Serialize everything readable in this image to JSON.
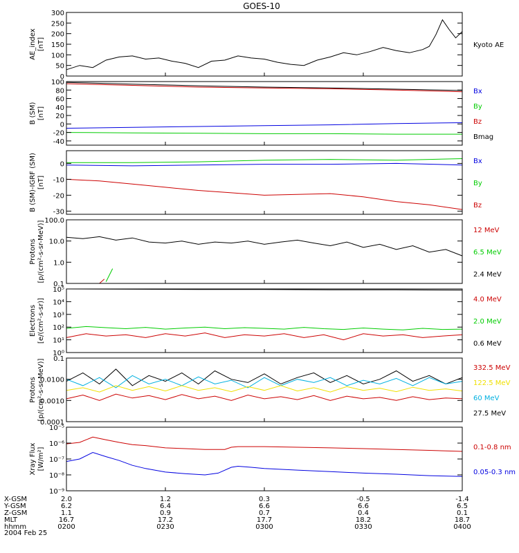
{
  "title": "GOES-10",
  "date_label": "2004 Feb 25",
  "colors": {
    "black": "#000000",
    "red": "#cc0000",
    "blue": "#0000e0",
    "green": "#00cc00",
    "cyan": "#00b0e0",
    "yellow": "#f0e000"
  },
  "footer": {
    "row_labels": [
      "X-GSM",
      "Y-GSM",
      "Z-GSM",
      "MLT",
      "hhmm"
    ],
    "columns": [
      {
        "values": [
          "2.0",
          "6.2",
          "1.1",
          "16.7",
          "0200"
        ]
      },
      {
        "values": [
          "1.2",
          "6.4",
          "0.9",
          "17.2",
          "0230"
        ]
      },
      {
        "values": [
          "0.3",
          "6.6",
          "0.7",
          "17.7",
          "0300"
        ]
      },
      {
        "values": [
          "-0.5",
          "6.6",
          "0.4",
          "18.2",
          "0330"
        ]
      },
      {
        "values": [
          "-1.4",
          "6.5",
          "0.1",
          "18.7",
          "0400"
        ]
      }
    ]
  },
  "chart_data": [
    {
      "type": "line",
      "ylabel": [
        "AE_index",
        "[nT]"
      ],
      "yscale": "linear",
      "ylim": [
        0,
        300
      ],
      "yticks": [
        0,
        50,
        100,
        150,
        200,
        250,
        300
      ],
      "ytick_labels": [
        "0",
        "50",
        "100",
        "150",
        "200",
        "250",
        "300"
      ],
      "xlim": [
        0,
        120
      ],
      "legend": [
        {
          "text": "Kyoto AE",
          "color": "#000000"
        }
      ],
      "series": [
        {
          "name": "Kyoto AE",
          "color": "#000000",
          "x": [
            0,
            4,
            8,
            12,
            16,
            20,
            24,
            28,
            32,
            36,
            40,
            44,
            48,
            52,
            56,
            60,
            64,
            68,
            72,
            76,
            80,
            84,
            88,
            92,
            96,
            100,
            104,
            108,
            110,
            112,
            114,
            116,
            118,
            120
          ],
          "y": [
            30,
            50,
            40,
            75,
            90,
            95,
            80,
            85,
            70,
            60,
            40,
            70,
            75,
            95,
            85,
            80,
            65,
            55,
            50,
            75,
            90,
            110,
            100,
            115,
            135,
            120,
            110,
            125,
            140,
            195,
            265,
            220,
            180,
            210
          ]
        }
      ]
    },
    {
      "type": "line",
      "ylabel": [
        "B (SM)",
        "[nT]"
      ],
      "yscale": "linear",
      "ylim": [
        -50,
        100
      ],
      "yticks": [
        -40,
        -20,
        0,
        20,
        40,
        60,
        80,
        100
      ],
      "ytick_labels": [
        "-40",
        "-20",
        "0",
        "20",
        "40",
        "60",
        "80",
        "100"
      ],
      "xlim": [
        0,
        120
      ],
      "legend": [
        {
          "text": "Bx",
          "color": "#0000e0"
        },
        {
          "text": "By",
          "color": "#00cc00"
        },
        {
          "text": "Bz",
          "color": "#cc0000"
        },
        {
          "text": "Bmag",
          "color": "#000000"
        }
      ],
      "series": [
        {
          "name": "Bmag",
          "color": "#000000",
          "x": [
            0,
            20,
            40,
            60,
            80,
            100,
            120
          ],
          "y": [
            98,
            94,
            90,
            87,
            85,
            82,
            79
          ]
        },
        {
          "name": "Bz",
          "color": "#cc0000",
          "x": [
            0,
            20,
            40,
            60,
            80,
            100,
            120
          ],
          "y": [
            95,
            91,
            87,
            85,
            83,
            80,
            76
          ]
        },
        {
          "name": "Bx",
          "color": "#0000e0",
          "x": [
            0,
            20,
            40,
            60,
            80,
            100,
            120
          ],
          "y": [
            -10,
            -8,
            -6,
            -4,
            -2,
            1,
            3
          ]
        },
        {
          "name": "By",
          "color": "#00cc00",
          "x": [
            0,
            20,
            40,
            60,
            80,
            100,
            120
          ],
          "y": [
            -20,
            -21,
            -22,
            -23,
            -23,
            -24,
            -24
          ]
        }
      ]
    },
    {
      "type": "line",
      "ylabel": [
        "B (SM)-IGRF (SM)",
        "[nT]"
      ],
      "yscale": "linear",
      "ylim": [
        -32,
        8
      ],
      "yticks": [
        -30,
        -20,
        -10,
        0
      ],
      "ytick_labels": [
        "-30",
        "-20",
        "-10",
        "0"
      ],
      "xlim": [
        0,
        120
      ],
      "legend": [
        {
          "text": "Bx",
          "color": "#0000e0"
        },
        {
          "text": "By",
          "color": "#00cc00"
        },
        {
          "text": "Bz",
          "color": "#cc0000"
        }
      ],
      "series": [
        {
          "name": "By",
          "color": "#00cc00",
          "x": [
            0,
            20,
            40,
            60,
            80,
            100,
            120
          ],
          "y": [
            0.5,
            0.5,
            1,
            2,
            2.5,
            2,
            3
          ]
        },
        {
          "name": "Bx",
          "color": "#0000e0",
          "x": [
            0,
            20,
            40,
            60,
            80,
            100,
            120
          ],
          "y": [
            -1,
            -1.5,
            -1,
            -0.5,
            -0.5,
            0,
            -1
          ]
        },
        {
          "name": "Bz",
          "color": "#cc0000",
          "x": [
            0,
            10,
            20,
            30,
            40,
            50,
            60,
            70,
            80,
            90,
            100,
            110,
            120
          ],
          "y": [
            -10,
            -11,
            -13,
            -15,
            -17,
            -18.5,
            -20,
            -19.5,
            -19,
            -21,
            -24,
            -26,
            -29
          ]
        }
      ]
    },
    {
      "type": "line",
      "ylabel": [
        "Protons",
        "[p/(cm²-s-sr-MeV)]"
      ],
      "yscale": "log",
      "ylim": [
        0.1,
        100
      ],
      "yticks": [
        0.1,
        1,
        10,
        100
      ],
      "ytick_labels": [
        "0.1",
        "1.0",
        "10.0",
        "100.0"
      ],
      "xlim": [
        0,
        120
      ],
      "legend": [
        {
          "text": "12 MeV",
          "color": "#cc0000"
        },
        {
          "text": "6.5 MeV",
          "color": "#00cc00"
        },
        {
          "text": "2.4 MeV",
          "color": "#000000"
        }
      ],
      "series": [
        {
          "name": "2.4 MeV",
          "color": "#000000",
          "x": [
            0,
            5,
            10,
            15,
            20,
            25,
            30,
            35,
            40,
            45,
            50,
            55,
            60,
            65,
            70,
            75,
            80,
            85,
            90,
            95,
            100,
            105,
            110,
            115,
            120
          ],
          "y": [
            15,
            13,
            16,
            11,
            14,
            9,
            8,
            10,
            7,
            9,
            8,
            10,
            7,
            9,
            11,
            8,
            6,
            9,
            5,
            7,
            4,
            6,
            3,
            4,
            2
          ]
        },
        {
          "name": "12 MeV",
          "color": "#cc0000",
          "x": [
            10,
            11.5
          ],
          "y": [
            0.1,
            0.16
          ]
        },
        {
          "name": "6.5 MeV",
          "color": "#00cc00",
          "x": [
            12,
            14
          ],
          "y": [
            0.12,
            0.5
          ]
        }
      ]
    },
    {
      "type": "line",
      "ylabel": [
        "Electrons",
        "[e/(cm²-s-sr)]"
      ],
      "yscale": "log",
      "ylim": [
        1,
        100000
      ],
      "yticks": [
        1,
        10,
        100,
        1000,
        10000,
        100000
      ],
      "ytick_labels": [
        "10⁰",
        "10¹",
        "10²",
        "10³",
        "10⁴",
        "10⁵"
      ],
      "xlim": [
        0,
        120
      ],
      "legend": [
        {
          "text": "4.0 MeV",
          "color": "#cc0000"
        },
        {
          "text": "2.0 MeV",
          "color": "#00cc00"
        },
        {
          "text": "0.6 MeV",
          "color": "#000000"
        }
      ],
      "series": [
        {
          "name": "0.6 MeV",
          "color": "#000000",
          "x": [
            0,
            20,
            40,
            60,
            80,
            100,
            120
          ],
          "y": [
            100000,
            95000,
            90000,
            90000,
            85000,
            85000,
            80000
          ]
        },
        {
          "name": "2.0 MeV",
          "color": "#00cc00",
          "x": [
            0,
            6,
            12,
            18,
            24,
            30,
            36,
            42,
            48,
            54,
            60,
            66,
            72,
            78,
            84,
            90,
            96,
            102,
            108,
            114,
            120
          ],
          "y": [
            80,
            110,
            90,
            75,
            95,
            70,
            85,
            100,
            75,
            90,
            80,
            70,
            95,
            75,
            65,
            85,
            70,
            60,
            80,
            65,
            70
          ]
        },
        {
          "name": "4.0 MeV",
          "color": "#cc0000",
          "x": [
            0,
            6,
            12,
            18,
            24,
            30,
            36,
            42,
            48,
            54,
            60,
            66,
            72,
            78,
            84,
            90,
            96,
            102,
            108,
            114,
            120
          ],
          "y": [
            15,
            30,
            20,
            25,
            15,
            30,
            20,
            35,
            15,
            25,
            20,
            30,
            15,
            25,
            10,
            30,
            20,
            25,
            15,
            20,
            25
          ]
        }
      ]
    },
    {
      "type": "line",
      "ylabel": [
        "Protons",
        "[p/(cm²-s-sr-MeV)]"
      ],
      "yscale": "log",
      "ylim": [
        0.0001,
        0.1
      ],
      "yticks": [
        0.0001,
        0.001,
        0.01,
        0.1
      ],
      "ytick_labels": [
        "0.0001",
        "0.0010",
        "0.0100",
        "0.1"
      ],
      "xlim": [
        0,
        120
      ],
      "legend": [
        {
          "text": "332.5 MeV",
          "color": "#cc0000"
        },
        {
          "text": "122.5 MeV",
          "color": "#f0e000"
        },
        {
          "text": "60 MeV",
          "color": "#00b0e0"
        },
        {
          "text": "27.5 MeV",
          "color": "#000000"
        }
      ],
      "series": [
        {
          "name": "27.5 MeV",
          "color": "#000000",
          "x": [
            0,
            5,
            10,
            15,
            20,
            25,
            30,
            35,
            40,
            45,
            50,
            55,
            60,
            65,
            70,
            75,
            80,
            85,
            90,
            95,
            100,
            105,
            110,
            115,
            120
          ],
          "y": [
            0.008,
            0.02,
            0.006,
            0.03,
            0.005,
            0.015,
            0.008,
            0.02,
            0.006,
            0.025,
            0.01,
            0.007,
            0.018,
            0.006,
            0.012,
            0.02,
            0.007,
            0.015,
            0.006,
            0.01,
            0.025,
            0.008,
            0.015,
            0.006,
            0.012
          ]
        },
        {
          "name": "60 MeV",
          "color": "#00b0e0",
          "x": [
            0,
            5,
            10,
            15,
            20,
            25,
            30,
            35,
            40,
            45,
            50,
            55,
            60,
            65,
            70,
            75,
            80,
            85,
            90,
            95,
            100,
            105,
            110,
            115,
            120
          ],
          "y": [
            0.01,
            0.005,
            0.012,
            0.004,
            0.015,
            0.006,
            0.01,
            0.005,
            0.013,
            0.006,
            0.009,
            0.004,
            0.012,
            0.005,
            0.01,
            0.007,
            0.012,
            0.005,
            0.009,
            0.006,
            0.011,
            0.005,
            0.012,
            0.006,
            0.008
          ]
        },
        {
          "name": "122.5 MeV",
          "color": "#f0e000",
          "x": [
            0,
            5,
            10,
            15,
            20,
            25,
            30,
            35,
            40,
            45,
            50,
            55,
            60,
            65,
            70,
            75,
            80,
            85,
            90,
            95,
            100,
            105,
            110,
            115,
            120
          ],
          "y": [
            0.003,
            0.004,
            0.0025,
            0.005,
            0.003,
            0.0045,
            0.0028,
            0.005,
            0.003,
            0.004,
            0.0026,
            0.0045,
            0.003,
            0.005,
            0.0028,
            0.004,
            0.0025,
            0.0045,
            0.003,
            0.0038,
            0.0026,
            0.0042,
            0.003,
            0.0035,
            0.0028
          ]
        },
        {
          "name": "332.5 MeV",
          "color": "#cc0000",
          "x": [
            0,
            5,
            10,
            15,
            20,
            25,
            30,
            35,
            40,
            45,
            50,
            55,
            60,
            65,
            70,
            75,
            80,
            85,
            90,
            95,
            100,
            105,
            110,
            115,
            120
          ],
          "y": [
            0.0012,
            0.0018,
            0.001,
            0.002,
            0.0013,
            0.0017,
            0.0011,
            0.0019,
            0.0012,
            0.0016,
            0.001,
            0.0018,
            0.0012,
            0.0015,
            0.0011,
            0.0017,
            0.001,
            0.0016,
            0.0012,
            0.0014,
            0.001,
            0.0015,
            0.0011,
            0.0013,
            0.0012
          ]
        }
      ]
    },
    {
      "type": "line",
      "ylabel": [
        "Xray Flux",
        "[W/m²]"
      ],
      "yscale": "log",
      "ylim": [
        1e-09,
        1e-05
      ],
      "yticks": [
        1e-09,
        1e-08,
        1e-07,
        1e-06,
        1e-05
      ],
      "ytick_labels": [
        "10⁻⁹",
        "10⁻⁸",
        "10⁻⁷",
        "10⁻⁶",
        "10⁻⁵"
      ],
      "xlim": [
        0,
        120
      ],
      "legend": [
        {
          "text": "0.1-0.8 nm",
          "color": "#cc0000"
        },
        {
          "text": "0.05-0.3 nm",
          "color": "#0000e0"
        }
      ],
      "series": [
        {
          "name": "0.1-0.8 nm",
          "color": "#cc0000",
          "x": [
            0,
            4,
            8,
            12,
            16,
            20,
            24,
            30,
            36,
            42,
            48,
            50,
            52,
            56,
            60,
            70,
            80,
            90,
            100,
            110,
            120
          ],
          "y": [
            9e-07,
            1.1e-06,
            2.4e-06,
            1.6e-06,
            1.1e-06,
            8e-07,
            7e-07,
            5e-07,
            4.5e-07,
            4e-07,
            4e-07,
            5.5e-07,
            6e-07,
            6e-07,
            6e-07,
            5.5e-07,
            5e-07,
            4.5e-07,
            4e-07,
            3.5e-07,
            3e-07
          ]
        },
        {
          "name": "0.05-0.3 nm",
          "color": "#0000e0",
          "x": [
            0,
            4,
            8,
            12,
            16,
            20,
            24,
            30,
            36,
            42,
            46,
            50,
            52,
            56,
            60,
            70,
            80,
            90,
            100,
            110,
            120
          ],
          "y": [
            7e-08,
            1e-07,
            2.6e-07,
            1.4e-07,
            8e-08,
            4e-08,
            2.5e-08,
            1.5e-08,
            1.2e-08,
            1e-08,
            1.3e-08,
            3e-08,
            3.5e-08,
            3e-08,
            2.5e-08,
            2e-08,
            1.6e-08,
            1.3e-08,
            1.1e-08,
            9e-09,
            8e-09
          ]
        }
      ]
    }
  ]
}
